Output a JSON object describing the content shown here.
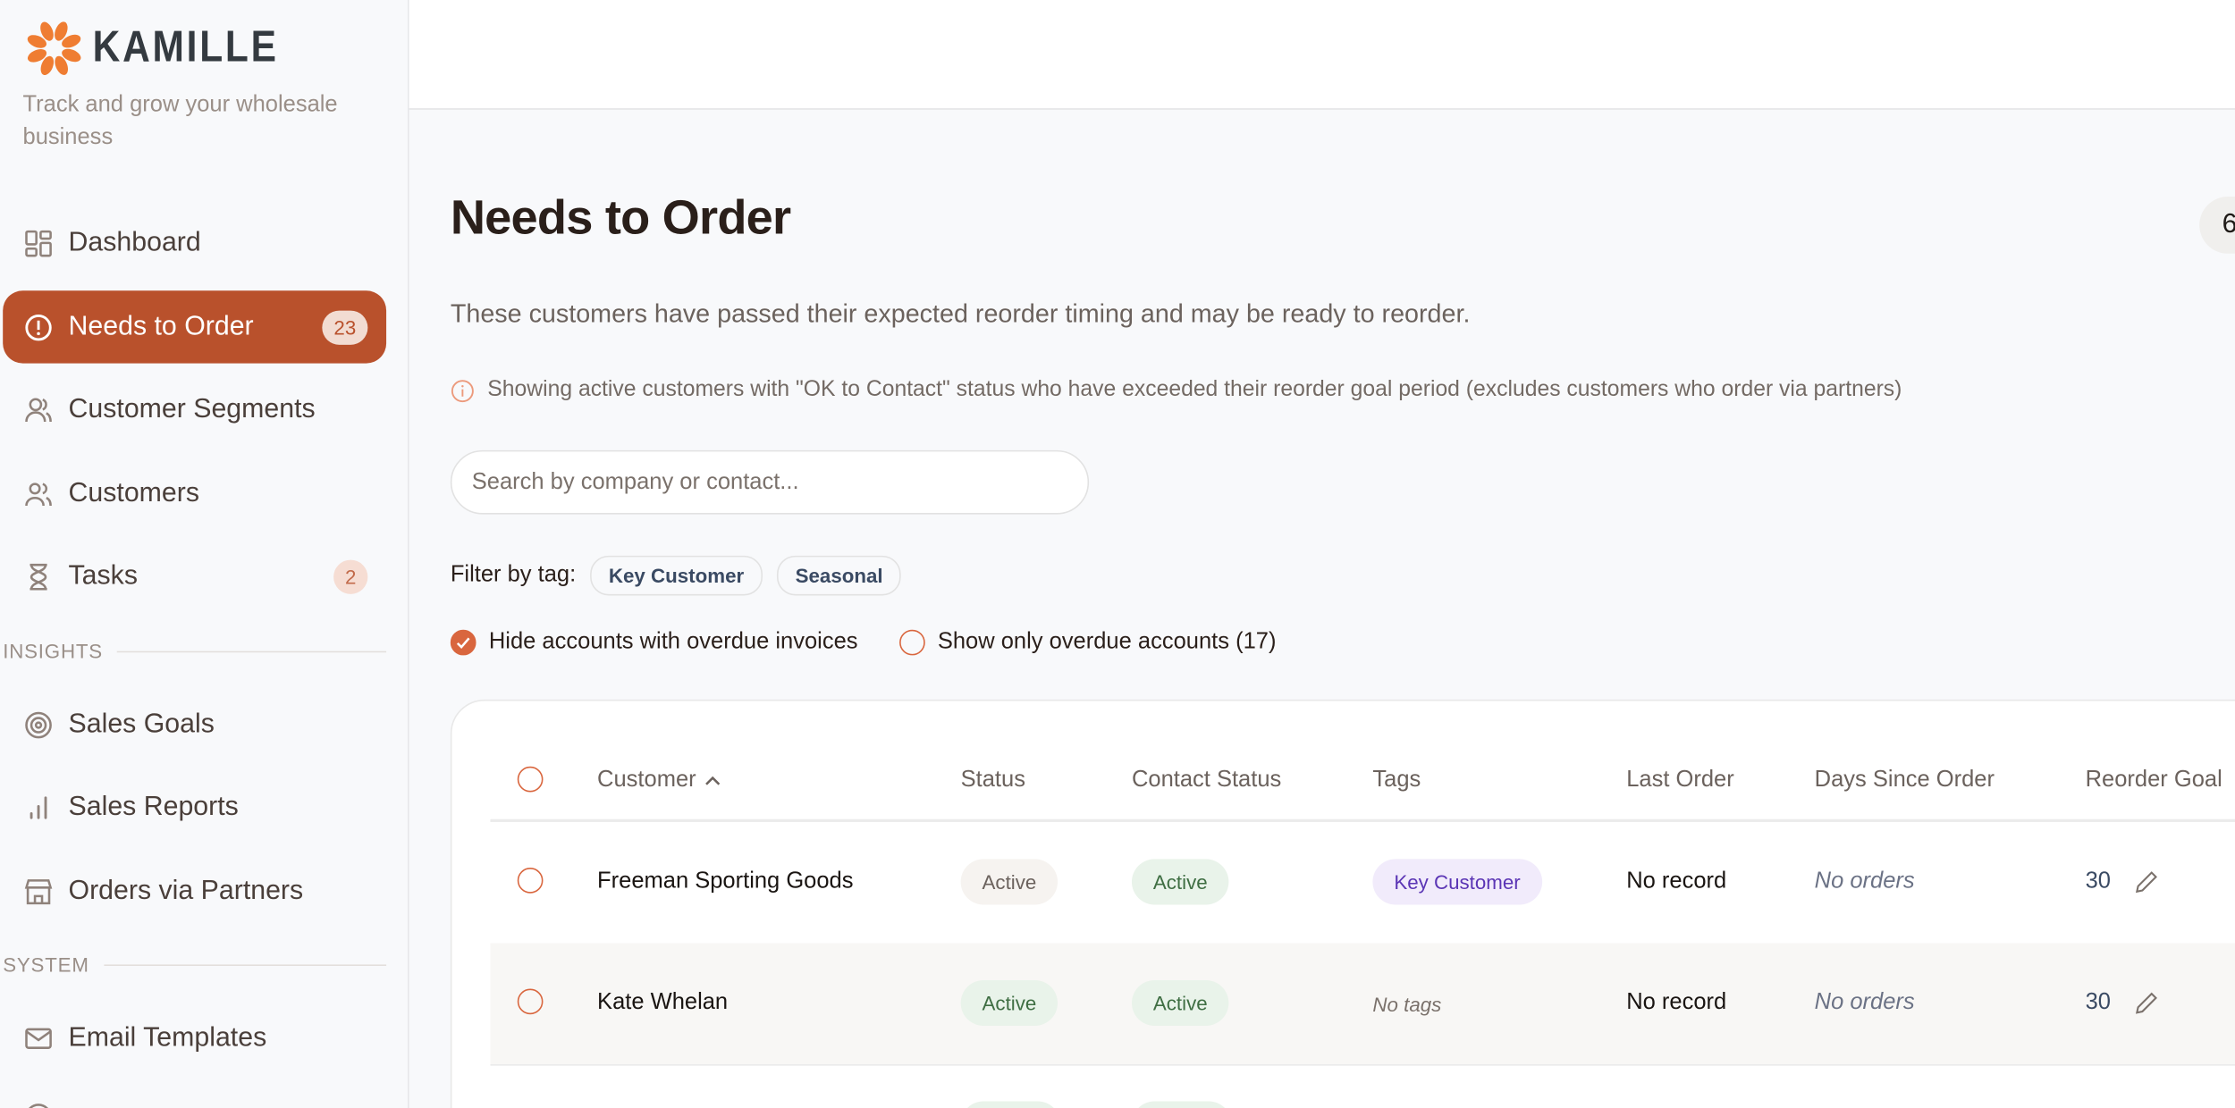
{
  "brand": {
    "name": "KAMILLE",
    "tagline": "Track and grow your wholesale business",
    "accent": "#b9512c",
    "logo_color": "#ef7d32"
  },
  "sidebar": {
    "items": [
      {
        "label": "Dashboard",
        "icon": "grid-icon"
      },
      {
        "label": "Needs to Order",
        "icon": "alert-circle-icon",
        "badge": "23",
        "active": true
      },
      {
        "label": "Customer Segments",
        "icon": "users-icon"
      },
      {
        "label": "Customers",
        "icon": "users-icon"
      },
      {
        "label": "Tasks",
        "icon": "hourglass-icon",
        "badge": "2"
      }
    ],
    "insights_label": "INSIGHTS",
    "insights": [
      {
        "label": "Sales Goals",
        "icon": "target-icon"
      },
      {
        "label": "Sales Reports",
        "icon": "bar-chart-icon"
      },
      {
        "label": "Orders via Partners",
        "icon": "store-icon"
      }
    ],
    "system_label": "SYSTEM",
    "system": [
      {
        "label": "Email Templates",
        "icon": "mail-icon"
      }
    ]
  },
  "page": {
    "title": "Needs to Order",
    "count": "6",
    "subtitle": "These customers have passed their expected reorder timing and may be ready to reorder.",
    "info": "Showing active customers with \"OK to Contact\" status who have exceeded their reorder goal period (excludes customers who order via partners)",
    "search_placeholder": "Search by company or contact...",
    "filter_label": "Filter by tag:",
    "tags": [
      "Key Customer",
      "Seasonal"
    ],
    "hide_overdue_label": "Hide accounts with overdue invoices",
    "hide_overdue_checked": true,
    "show_overdue_label": "Show only overdue accounts (17)",
    "show_overdue_checked": false
  },
  "table": {
    "columns": [
      "Customer",
      "Status",
      "Contact Status",
      "Tags",
      "Last Order",
      "Days Since Order",
      "Reorder Goal"
    ],
    "sort": "Customer ascending",
    "rows": [
      {
        "customer": "Freeman Sporting Goods",
        "status": "Active",
        "contact_status": "Active",
        "tags": "Key Customer",
        "last_order": "No record",
        "days_since": "No orders",
        "reorder_goal": "30"
      },
      {
        "customer": "Kate Whelan",
        "status": "Active",
        "contact_status": "Active",
        "tags": "No tags",
        "last_order": "No record",
        "days_since": "No orders",
        "reorder_goal": "30"
      }
    ]
  }
}
